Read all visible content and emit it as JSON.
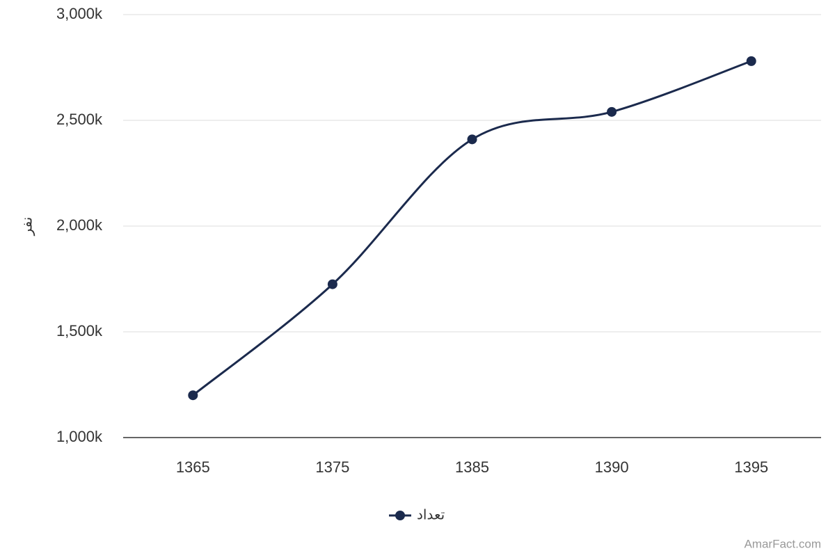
{
  "chart_data": {
    "type": "line",
    "y_label": "نفر",
    "categories": [
      "1365",
      "1375",
      "1385",
      "1390",
      "1395"
    ],
    "series": [
      {
        "name": "تعداد",
        "color": "#1b2a4d",
        "values": [
          1200000,
          1725000,
          2410000,
          2540000,
          2780000
        ]
      }
    ],
    "ylim": [
      1000000,
      3000000
    ],
    "yticks": [
      {
        "value": 1000000,
        "label": "1,000k"
      },
      {
        "value": 1500000,
        "label": "1,500k"
      },
      {
        "value": 2000000,
        "label": "2,000k"
      },
      {
        "value": 2500000,
        "label": "2,500k"
      },
      {
        "value": 3000000,
        "label": "3,000k"
      }
    ],
    "grid": true,
    "legend": "bottom",
    "credit": "AmarFact.com"
  }
}
